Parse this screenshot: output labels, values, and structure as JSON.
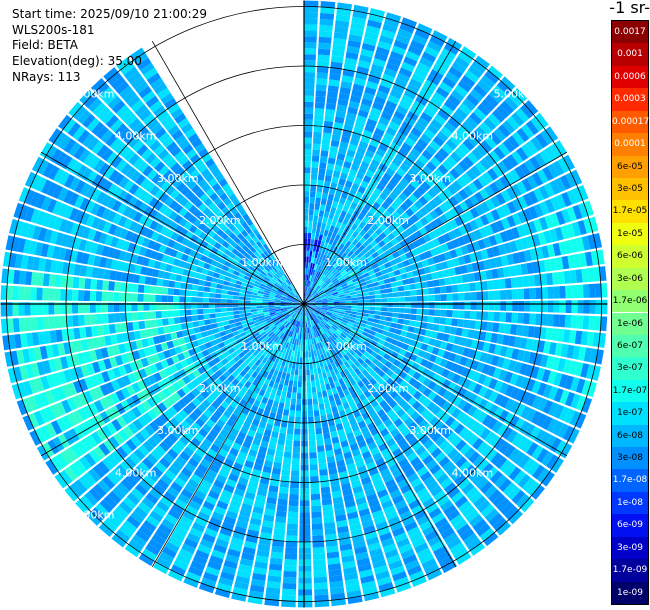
{
  "header": {
    "start_time": "Start time: 2025/09/10 21:00:29",
    "instrument": "WLS200s-181",
    "field": "Field: BETA",
    "elevation": "Elevation(deg): 35.00",
    "nrays": "NRays: 113"
  },
  "colorbar": {
    "unit_label": "-1 sr-",
    "levels": [
      {
        "label": "0.0017",
        "color": "#8b0000"
      },
      {
        "label": "0.001",
        "color": "#b80000"
      },
      {
        "label": "0.0006",
        "color": "#e00000"
      },
      {
        "label": "0.0003",
        "color": "#ff2a00"
      },
      {
        "label": "0.00017",
        "color": "#ff5a00"
      },
      {
        "label": "0.0001",
        "color": "#ff7f00"
      },
      {
        "label": "6e-05",
        "color": "#ffa000"
      },
      {
        "label": "3e-05",
        "color": "#ffc000"
      },
      {
        "label": "1.7e-05",
        "color": "#ffe000"
      },
      {
        "label": "1e-05",
        "color": "#f0ff10"
      },
      {
        "label": "6e-06",
        "color": "#d0ff30"
      },
      {
        "label": "3e-06",
        "color": "#b0ff50"
      },
      {
        "label": "1.7e-06",
        "color": "#90ff70"
      },
      {
        "label": "1e-06",
        "color": "#70ff90"
      },
      {
        "label": "6e-07",
        "color": "#50ffb0"
      },
      {
        "label": "3e-07",
        "color": "#30ffd0"
      },
      {
        "label": "1.7e-07",
        "color": "#10ffee"
      },
      {
        "label": "1e-07",
        "color": "#00e0ff"
      },
      {
        "label": "6e-08",
        "color": "#00b8ff"
      },
      {
        "label": "3e-08",
        "color": "#0090ff"
      },
      {
        "label": "1.7e-08",
        "color": "#0064ff"
      },
      {
        "label": "1e-08",
        "color": "#0038ff"
      },
      {
        "label": "6e-09",
        "color": "#0010f0"
      },
      {
        "label": "3e-09",
        "color": "#0000c8"
      },
      {
        "label": "1.7e-09",
        "color": "#00009c"
      },
      {
        "label": "1e-09",
        "color": "#00006a"
      }
    ]
  },
  "chart_data": {
    "type": "heatmap",
    "projection": "polar",
    "field": "BETA",
    "elevation_deg": 35.0,
    "nrays": 113,
    "range_rings_km": [
      1,
      2,
      3,
      4,
      5
    ],
    "ring_labels": [
      "1.00km",
      "2.00km",
      "3.00km",
      "4.00km",
      "5.00km"
    ],
    "max_range_km": 5.1,
    "radial_line_spacing_deg": 30,
    "data_gaps_azimuth_deg": [
      [
        330,
        359.9
      ]
    ],
    "dominant_level_index": 18,
    "dominant_value": "6e-08",
    "notes_levels": "colour scale values from 1e-09 to 0.0017"
  }
}
